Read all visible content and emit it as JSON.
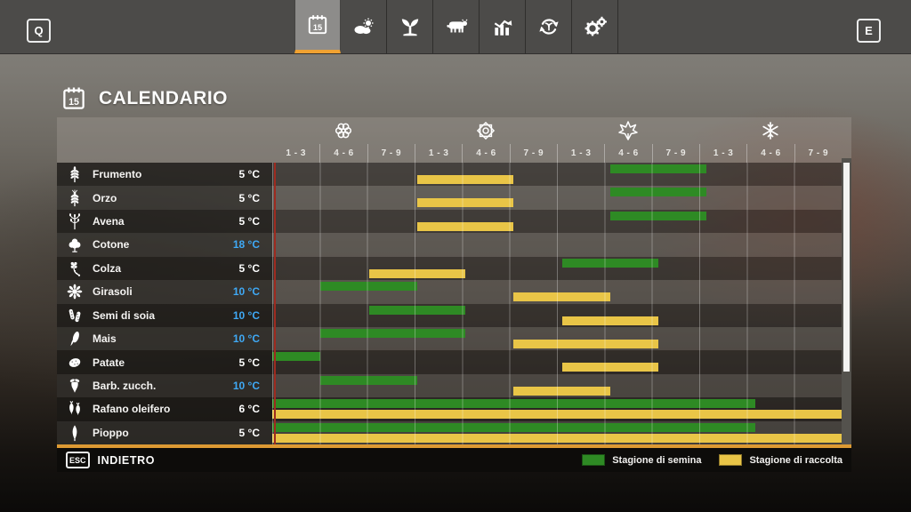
{
  "topbar": {
    "left_key": "Q",
    "right_key": "E",
    "tabs": [
      {
        "name": "calendar",
        "icon": "calendar-icon",
        "active": true
      },
      {
        "name": "weather",
        "icon": "weather-icon",
        "active": false
      },
      {
        "name": "crops",
        "icon": "sprout-icon",
        "active": false
      },
      {
        "name": "animals",
        "icon": "cow-icon",
        "active": false
      },
      {
        "name": "statistics",
        "icon": "stats-icon",
        "active": false
      },
      {
        "name": "production",
        "icon": "production-icon",
        "active": false
      },
      {
        "name": "settings",
        "icon": "gears-icon",
        "active": false
      }
    ]
  },
  "page": {
    "title": "CALENDARIO",
    "title_icon": "calendar-icon"
  },
  "calendar": {
    "seasons": [
      {
        "name": "spring",
        "icon": "spring-icon"
      },
      {
        "name": "summer",
        "icon": "summer-icon"
      },
      {
        "name": "autumn",
        "icon": "autumn-icon"
      },
      {
        "name": "winter",
        "icon": "winter-icon"
      }
    ],
    "month_ranges": [
      "1 - 3",
      "4 - 6",
      "7 - 9",
      "1 - 3",
      "4 - 6",
      "7 - 9",
      "1 - 3",
      "4 - 6",
      "7 - 9",
      "1 - 3",
      "4 - 6",
      "7 - 9"
    ],
    "columns": 12,
    "crops": [
      {
        "name": "Frumento",
        "icon": "wheat-icon",
        "temp": "5 °C",
        "temp_highlight": false,
        "sow": [
          8,
          9
        ],
        "harvest": [
          4,
          5
        ]
      },
      {
        "name": "Orzo",
        "icon": "barley-icon",
        "temp": "5 °C",
        "temp_highlight": false,
        "sow": [
          8,
          9
        ],
        "harvest": [
          4,
          5
        ]
      },
      {
        "name": "Avena",
        "icon": "oat-icon",
        "temp": "5 °C",
        "temp_highlight": false,
        "sow": [
          8,
          9
        ],
        "harvest": [
          4,
          5
        ]
      },
      {
        "name": "Cotone",
        "icon": "cotton-icon",
        "temp": "18 °C",
        "temp_highlight": true,
        "sow": null,
        "harvest": null
      },
      {
        "name": "Colza",
        "icon": "canola-icon",
        "temp": "5 °C",
        "temp_highlight": false,
        "sow": [
          7,
          8
        ],
        "harvest": [
          3,
          4
        ]
      },
      {
        "name": "Girasoli",
        "icon": "sunflower-icon",
        "temp": "10 °C",
        "temp_highlight": true,
        "sow": [
          2,
          3
        ],
        "harvest": [
          6,
          7
        ]
      },
      {
        "name": "Semi di soia",
        "icon": "soybean-icon",
        "temp": "10 °C",
        "temp_highlight": true,
        "sow": [
          3,
          4
        ],
        "harvest": [
          7,
          8
        ]
      },
      {
        "name": "Mais",
        "icon": "corn-icon",
        "temp": "10 °C",
        "temp_highlight": true,
        "sow": [
          2,
          4
        ],
        "harvest": [
          6,
          8
        ]
      },
      {
        "name": "Patate",
        "icon": "potato-icon",
        "temp": "5 °C",
        "temp_highlight": false,
        "sow": [
          1,
          1
        ],
        "harvest": [
          7,
          8
        ]
      },
      {
        "name": "Barb. zucch.",
        "icon": "sugarbeet-icon",
        "temp": "10 °C",
        "temp_highlight": true,
        "sow": [
          2,
          3
        ],
        "harvest": [
          6,
          7
        ]
      },
      {
        "name": "Rafano oleifero",
        "icon": "radish-icon",
        "temp": "6 °C",
        "temp_highlight": false,
        "sow": [
          1,
          10
        ],
        "harvest": [
          1,
          12
        ]
      },
      {
        "name": "Pioppo",
        "icon": "poplar-icon",
        "temp": "5 °C",
        "temp_highlight": false,
        "sow": [
          1,
          10
        ],
        "harvest": [
          1,
          12
        ]
      }
    ]
  },
  "legend": [
    {
      "label": "Stagione di semina",
      "color": "#2e8a24"
    },
    {
      "label": "Stagione di raccolta",
      "color": "#e9c547"
    }
  ],
  "footer": {
    "key": "ESC",
    "label": "INDIETRO"
  },
  "colors": {
    "sow": "#2e8a24",
    "harvest": "#e9c547",
    "accent": "#f0a232",
    "timeline": "#9e2b20",
    "temp_cold": "#3fa9f5"
  }
}
